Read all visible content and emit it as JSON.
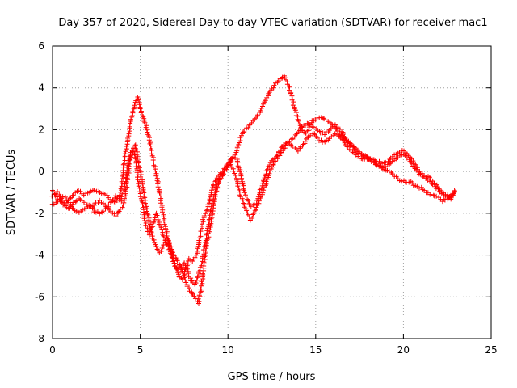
{
  "chart_data": {
    "type": "scatter",
    "title": "Day 357 of 2020, Sidereal Day-to-day VTEC variation (SDTVAR) for receiver mac1",
    "xlabel": "GPS time / hours",
    "ylabel": "SDTVAR / TECUs",
    "xlim": [
      0,
      25
    ],
    "ylim": [
      -8,
      6
    ],
    "xticks": [
      0,
      5,
      10,
      15,
      20,
      25
    ],
    "yticks": [
      -8,
      -6,
      -4,
      -2,
      0,
      2,
      4,
      6
    ],
    "xtick_labels": [
      "0",
      "5",
      "10",
      "15",
      "20",
      "25"
    ],
    "ytick_labels": [
      "-8",
      "-6",
      "-4",
      "-2",
      "0",
      "2",
      "4",
      "6"
    ],
    "grid": true,
    "marker": "plus",
    "series": [
      {
        "name": "SDTVAR",
        "color": "#ff0000",
        "traces": [
          {
            "x": [
              0,
              0.3,
              0.6,
              0.9,
              1.2,
              1.5,
              1.8,
              2.1,
              2.4,
              2.7,
              3.0,
              3.3,
              3.6,
              3.9,
              4.1,
              4.3,
              4.5,
              4.7,
              4.85,
              5.0,
              5.2,
              5.4,
              5.6,
              5.8,
              6.0,
              6.2,
              6.4,
              6.6,
              6.8,
              7.0,
              7.2,
              7.4,
              7.6,
              7.8,
              8.0,
              8.2,
              8.4,
              8.6,
              8.8,
              9.0,
              9.2,
              9.4,
              9.6,
              9.8,
              10.0,
              10.2,
              10.4,
              10.6,
              10.8,
              11.0,
              11.2,
              11.5,
              11.8,
              12.1,
              12.4,
              12.7,
              13.0,
              13.2,
              13.4,
              13.6,
              13.8,
              14.0,
              14.2,
              14.4,
              14.6,
              14.8,
              15.0,
              15.3,
              15.6,
              15.9,
              16.2,
              16.5,
              16.8,
              17.1,
              17.4,
              17.7,
              18.0,
              18.3,
              18.6,
              18.9,
              19.2,
              19.5,
              19.8,
              20.1,
              20.4,
              20.7,
              21.0,
              21.3,
              21.6,
              21.9,
              22.2,
              22.5,
              22.8,
              23.0
            ],
            "y": [
              -0.9,
              -1.3,
              -1.6,
              -1.4,
              -1.1,
              -0.9,
              -1.1,
              -1.0,
              -0.9,
              -1.0,
              -1.1,
              -1.3,
              -1.5,
              -1.0,
              0.5,
              1.5,
              2.5,
              3.3,
              3.6,
              3.0,
              2.5,
              2.0,
              1.2,
              0.3,
              -0.5,
              -1.5,
              -2.5,
              -3.3,
              -4.0,
              -4.5,
              -5.0,
              -5.2,
              -4.7,
              -4.2,
              -4.3,
              -4.0,
              -3.2,
              -2.3,
              -1.8,
              -1.2,
              -0.6,
              -0.3,
              -0.1,
              0.0,
              0.2,
              0.5,
              0.8,
              1.3,
              1.8,
              2.0,
              2.2,
              2.5,
              2.8,
              3.3,
              3.8,
              4.2,
              4.4,
              4.6,
              4.2,
              3.7,
              3.0,
              2.5,
              2.0,
              1.8,
              2.0,
              2.4,
              2.5,
              2.6,
              2.5,
              2.3,
              2.0,
              1.7,
              1.4,
              1.2,
              1.0,
              0.8,
              0.6,
              0.5,
              0.3,
              0.1,
              0.0,
              -0.2,
              -0.4,
              -0.5,
              -0.5,
              -0.7,
              -0.8,
              -1.0,
              -1.1,
              -1.2,
              -1.4,
              -1.3,
              -1.1,
              -0.8
            ]
          },
          {
            "x": [
              0,
              0.3,
              0.6,
              0.9,
              1.2,
              1.5,
              1.8,
              2.1,
              2.4,
              2.7,
              3.0,
              3.3,
              3.6,
              3.9,
              4.1,
              4.3,
              4.5,
              4.7,
              4.9,
              5.1,
              5.3,
              5.5,
              5.7,
              5.9,
              6.1,
              6.3,
              6.5,
              6.7,
              6.9,
              7.1,
              7.3,
              7.5,
              7.7,
              7.9,
              8.1,
              8.3,
              8.5,
              8.7,
              8.9,
              9.1,
              9.3,
              9.5,
              9.7,
              9.9,
              10.1,
              10.3,
              10.5,
              10.7,
              10.9,
              11.1,
              11.3,
              11.6,
              11.9,
              12.2,
              12.5,
              12.8,
              13.1,
              13.4,
              13.7,
              14.0,
              14.3,
              14.6,
              14.9,
              15.2,
              15.5,
              15.8,
              16.1,
              16.4,
              16.7,
              17.0,
              17.3,
              17.6,
              17.9,
              18.2,
              18.5,
              18.8,
              19.1,
              19.4,
              19.7,
              20.0,
              20.3,
              20.6,
              20.9,
              21.2,
              21.5,
              21.8,
              22.1,
              22.4,
              22.7,
              23.0
            ],
            "y": [
              -1.6,
              -1.4,
              -1.2,
              -1.4,
              -1.8,
              -2.0,
              -1.8,
              -1.6,
              -1.9,
              -2.0,
              -1.8,
              -1.5,
              -1.2,
              -1.4,
              -0.8,
              0.4,
              1.0,
              0.8,
              -0.5,
              -1.5,
              -2.5,
              -3.0,
              -2.6,
              -2.0,
              -2.5,
              -3.0,
              -3.5,
              -3.8,
              -4.3,
              -4.7,
              -4.5,
              -5.0,
              -5.5,
              -5.8,
              -6.0,
              -6.3,
              -5.5,
              -4.0,
              -3.0,
              -2.2,
              -1.0,
              -0.5,
              -0.2,
              0.2,
              0.4,
              0.1,
              -0.4,
              -1.1,
              -1.6,
              -2.0,
              -2.3,
              -1.8,
              -1.2,
              -0.5,
              0.2,
              0.6,
              1.0,
              1.4,
              1.6,
              1.9,
              2.2,
              2.3,
              2.1,
              1.9,
              1.8,
              2.0,
              2.2,
              2.0,
              1.6,
              1.3,
              1.0,
              0.8,
              0.7,
              0.6,
              0.5,
              0.4,
              0.5,
              0.7,
              0.9,
              1.0,
              0.8,
              0.4,
              0.0,
              -0.2,
              -0.3,
              -0.6,
              -0.9,
              -1.1,
              -1.2,
              -1.0
            ]
          },
          {
            "x": [
              0,
              0.3,
              0.6,
              0.9,
              1.2,
              1.5,
              1.8,
              2.1,
              2.4,
              2.7,
              3.0,
              3.3,
              3.6,
              3.9,
              4.1,
              4.3,
              4.5,
              4.7,
              4.9,
              5.1,
              5.3,
              5.5,
              5.7,
              5.9,
              6.1,
              6.3,
              6.5,
              6.7,
              6.9,
              7.1,
              7.3,
              7.5,
              7.7,
              7.9,
              8.1,
              8.3,
              8.5,
              8.7,
              8.9,
              9.1,
              9.3,
              9.5,
              9.7,
              9.9,
              10.1,
              10.3,
              10.5,
              10.7,
              10.9,
              11.1,
              11.3,
              11.6,
              11.9,
              12.2,
              12.5,
              12.8,
              13.1,
              13.4,
              13.7,
              14.0,
              14.3,
              14.6,
              14.9,
              15.2,
              15.5,
              15.8,
              16.1,
              16.4,
              16.7,
              17.0,
              17.3,
              17.6,
              17.9,
              18.2,
              18.5,
              18.8,
              19.1,
              19.4,
              19.7,
              20.0,
              20.3,
              20.6,
              20.9,
              21.2,
              21.5,
              21.8,
              22.1,
              22.4,
              22.7,
              23.0
            ],
            "y": [
              -1.2,
              -1.0,
              -1.5,
              -1.8,
              -1.5,
              -1.3,
              -1.5,
              -1.7,
              -1.6,
              -1.4,
              -1.6,
              -1.9,
              -2.1,
              -1.8,
              -1.5,
              -0.2,
              0.8,
              1.3,
              0.5,
              -0.5,
              -1.5,
              -2.3,
              -3.2,
              -3.6,
              -3.9,
              -3.6,
              -3.2,
              -3.5,
              -4.0,
              -4.2,
              -4.6,
              -4.4,
              -4.8,
              -5.2,
              -5.4,
              -5.0,
              -4.4,
              -3.5,
              -2.5,
              -1.5,
              -0.8,
              -0.4,
              0.0,
              0.3,
              0.5,
              0.7,
              0.6,
              0.0,
              -0.8,
              -1.3,
              -1.7,
              -1.5,
              -0.8,
              0.0,
              0.5,
              0.8,
              1.2,
              1.4,
              1.2,
              1.0,
              1.3,
              1.7,
              1.8,
              1.5,
              1.4,
              1.6,
              1.8,
              1.7,
              1.3,
              1.0,
              0.8,
              0.6,
              0.6,
              0.5,
              0.3,
              0.2,
              0.3,
              0.5,
              0.7,
              0.8,
              0.6,
              0.2,
              -0.1,
              -0.3,
              -0.5,
              -0.7,
              -1.0,
              -1.2,
              -1.3,
              -0.9
            ]
          }
        ]
      }
    ]
  }
}
